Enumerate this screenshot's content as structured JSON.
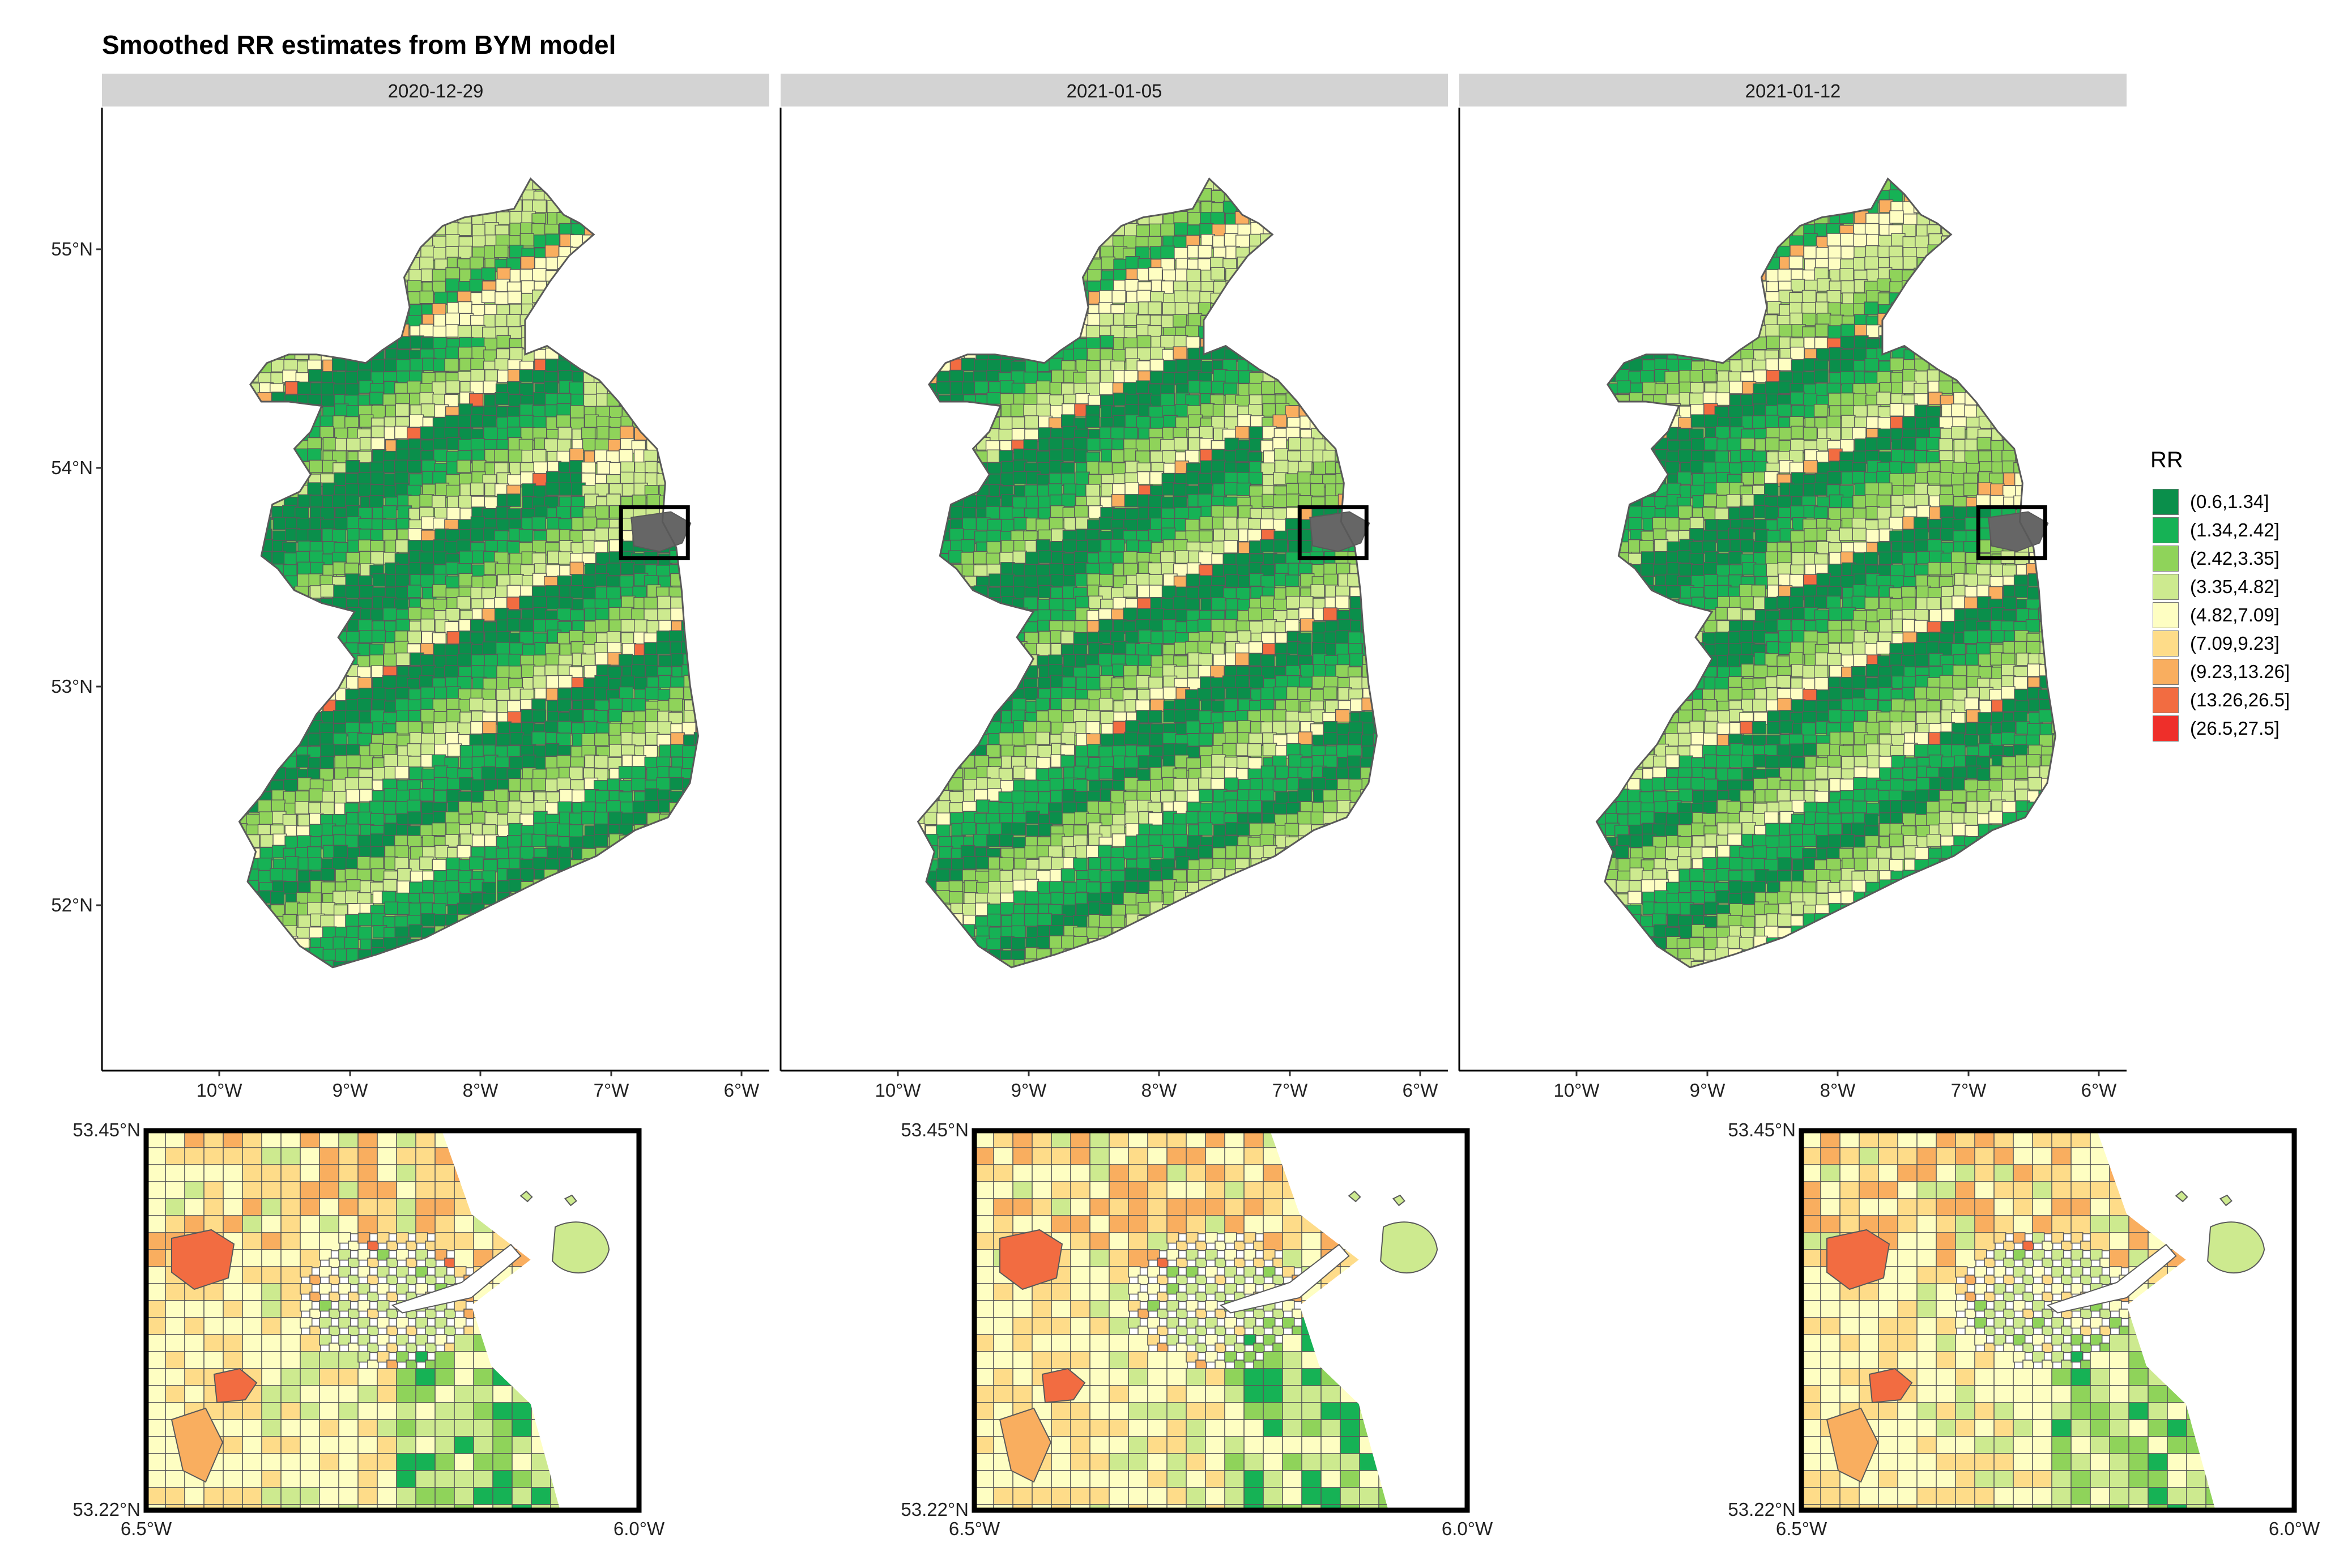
{
  "title": "Smoothed RR estimates from BYM model",
  "legend": {
    "title": "RR",
    "items": [
      {
        "label": "(0.6,1.34]",
        "color": "#0a8f4b"
      },
      {
        "label": "(1.34,2.42]",
        "color": "#16b255"
      },
      {
        "label": "(2.42,3.35]",
        "color": "#8fd35a"
      },
      {
        "label": "(3.35,4.82]",
        "color": "#cdea8f"
      },
      {
        "label": "(4.82,7.09]",
        "color": "#fefec2"
      },
      {
        "label": "(7.09,9.23]",
        "color": "#fedc89"
      },
      {
        "label": "(9.23,13.26]",
        "color": "#f9ae5f"
      },
      {
        "label": "(13.26,26.5]",
        "color": "#f26c41"
      },
      {
        "label": "(26.5,27.5]",
        "color": "#ee2f2a"
      }
    ]
  },
  "colors": {
    "strip": "#d3d3d3",
    "boundary": "#595959",
    "dublin_grey": "#666666",
    "highlight_box": "#000000"
  },
  "main_axes": {
    "y_ticks": [
      "55°N",
      "54°N",
      "53°N",
      "52°N"
    ],
    "x_ticks": [
      "10°W",
      "9°W",
      "8°W",
      "7°W",
      "6°W"
    ]
  },
  "facets": [
    {
      "date": "2020-12-29"
    },
    {
      "date": "2021-01-05"
    },
    {
      "date": "2021-01-12"
    }
  ],
  "inset_axes": {
    "y_top": "53.45°N",
    "y_bottom": "53.22°N",
    "x_left": "6.5°W",
    "x_right": "6.0°W"
  }
}
